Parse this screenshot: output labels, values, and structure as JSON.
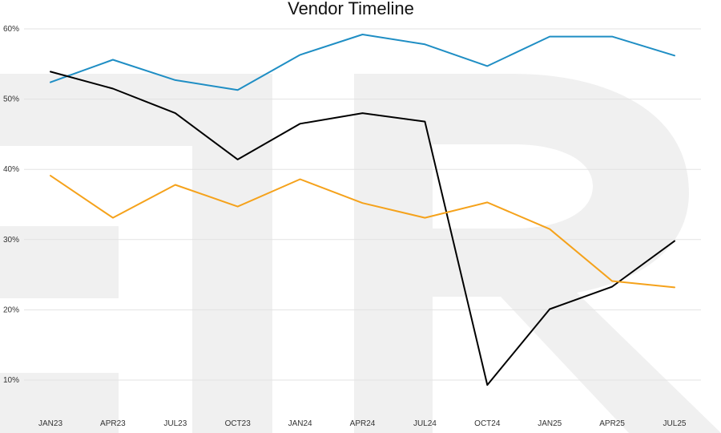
{
  "chart_data": {
    "type": "line",
    "title": "Vendor Timeline",
    "xlabel": "",
    "ylabel": "",
    "categories": [
      "JAN23",
      "APR23",
      "JUL23",
      "OCT23",
      "JAN24",
      "APR24",
      "JUL24",
      "OCT24",
      "JAN25",
      "APR25",
      "JUL25"
    ],
    "y_ticks": [
      "10%",
      "20%",
      "30%",
      "40%",
      "50%",
      "60%"
    ],
    "ylim": [
      5,
      62
    ],
    "grid": true,
    "legend": "none",
    "series": [
      {
        "color": "#1f8ec4",
        "values": [
          52.4,
          55.6,
          52.7,
          51.3,
          56.3,
          59.2,
          57.8,
          54.7,
          58.9,
          58.9,
          56.2
        ]
      },
      {
        "color": "#000000",
        "values": [
          53.9,
          51.5,
          48.0,
          41.4,
          46.5,
          48.0,
          46.8,
          9.3,
          20.1,
          23.3,
          29.8
        ]
      },
      {
        "color": "#f5a21b",
        "values": [
          39.1,
          33.1,
          37.8,
          34.7,
          38.6,
          35.2,
          33.1,
          35.3,
          31.5,
          24.1,
          23.2
        ]
      }
    ]
  }
}
